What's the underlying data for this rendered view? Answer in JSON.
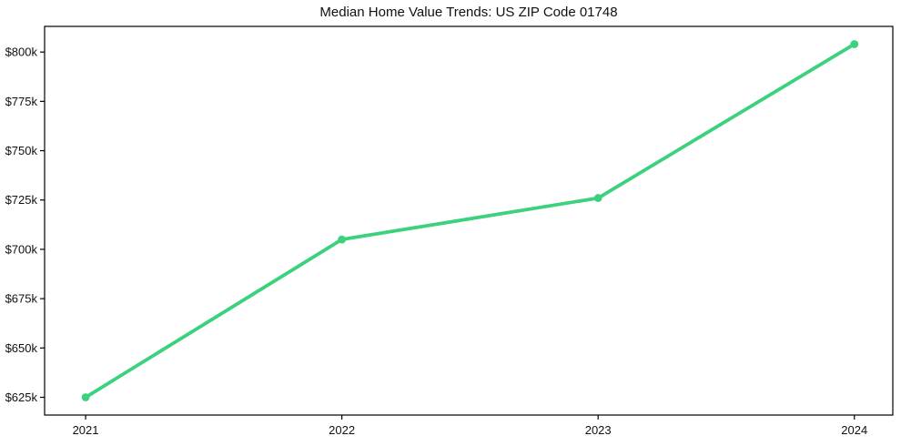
{
  "chart_data": {
    "type": "line",
    "title": "Median Home Value Trends: US ZIP Code 01748",
    "x": [
      2021,
      2022,
      2023,
      2024
    ],
    "x_tick_labels": [
      "2021",
      "2022",
      "2023",
      "2024"
    ],
    "series": [
      {
        "name": "median-home-value",
        "values": [
          625000,
          705000,
          726000,
          804000
        ],
        "color": "#3cd17c",
        "marker": "circle"
      }
    ],
    "y_ticks": [
      {
        "value": 625000,
        "label": "$625k"
      },
      {
        "value": 650000,
        "label": "$650k"
      },
      {
        "value": 675000,
        "label": "$675k"
      },
      {
        "value": 700000,
        "label": "$700k"
      },
      {
        "value": 725000,
        "label": "$725k"
      },
      {
        "value": 750000,
        "label": "$750k"
      },
      {
        "value": 775000,
        "label": "$775k"
      },
      {
        "value": 800000,
        "label": "$800k"
      }
    ],
    "ylim": [
      616000,
      813000
    ],
    "xlim": [
      2020.84,
      2024.15
    ],
    "grid": false,
    "legend": null,
    "xlabel": "",
    "ylabel": ""
  },
  "style": {
    "background_color": "#ffffff",
    "spine_color": "#000000",
    "tick_color": "#000000",
    "text_color": "#111111"
  }
}
